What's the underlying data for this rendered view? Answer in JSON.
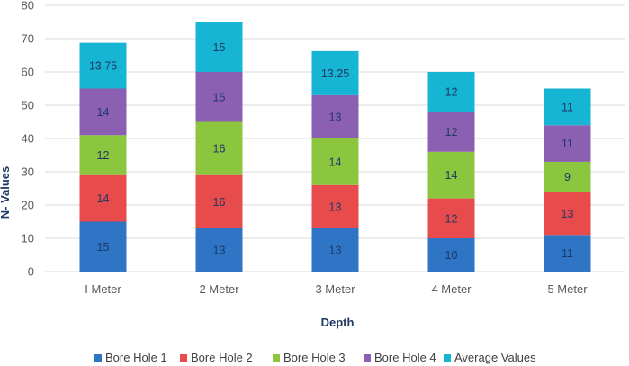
{
  "chart_data": {
    "type": "bar",
    "stacked": true,
    "title": "",
    "xlabel": "Depth",
    "ylabel": "N- Values",
    "ylim": [
      0,
      80
    ],
    "yticks": [
      0,
      10,
      20,
      30,
      40,
      50,
      60,
      70,
      80
    ],
    "grid": true,
    "legend_position": "bottom",
    "categories": [
      "I Meter",
      "2 Meter",
      "3 Meter",
      "4 Meter",
      "5 Meter"
    ],
    "series": [
      {
        "name": "Bore Hole 1",
        "color": "#2e75c6",
        "label_color": "#1f3864",
        "values": [
          15,
          13,
          13,
          10,
          11
        ],
        "labels": [
          "15",
          "13",
          "13",
          "10",
          "11"
        ]
      },
      {
        "name": "Bore Hole 2",
        "color": "#e84b4b",
        "label_color": "#1f3864",
        "values": [
          14,
          16,
          13,
          12,
          13
        ],
        "labels": [
          "14",
          "16",
          "13",
          "12",
          "13"
        ]
      },
      {
        "name": "Bore Hole 3",
        "color": "#8cc63f",
        "label_color": "#1f3864",
        "values": [
          12,
          16,
          14,
          14,
          9
        ],
        "labels": [
          "12",
          "16",
          "14",
          "14",
          "9"
        ]
      },
      {
        "name": "Bore Hole 4",
        "color": "#8b5fb2",
        "label_color": "#1f3864",
        "values": [
          14,
          15,
          13,
          12,
          11
        ],
        "labels": [
          "14",
          "15",
          "13",
          "12",
          "11"
        ]
      },
      {
        "name": "Average Values",
        "color": "#17b5d4",
        "label_color": "#1f3864",
        "values": [
          13.75,
          15,
          13.25,
          12,
          11
        ],
        "labels": [
          "13.75",
          "15",
          "13.25",
          "12",
          "11"
        ]
      }
    ]
  }
}
